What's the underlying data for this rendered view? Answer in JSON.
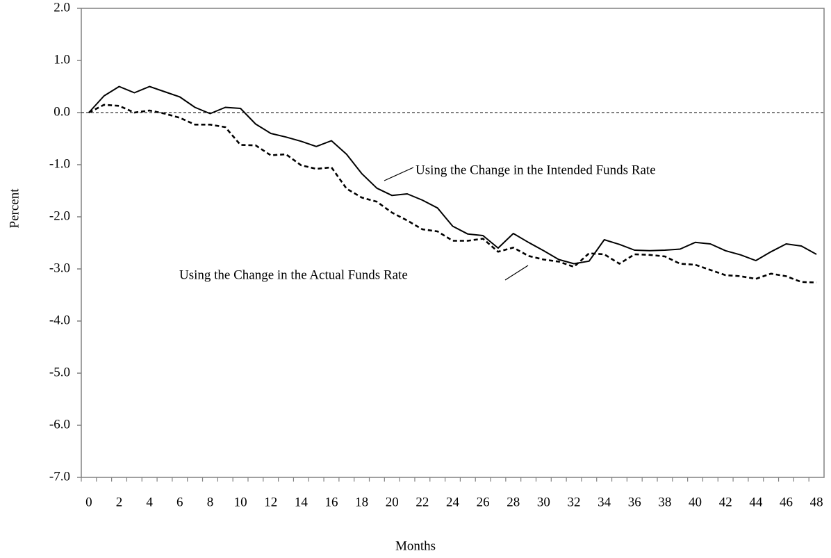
{
  "chart_data": {
    "type": "line",
    "x_label": "Months",
    "y_label": "Percent",
    "categories": [
      "0",
      null,
      "2",
      null,
      "4",
      null,
      "6",
      null,
      "8",
      null,
      "10",
      null,
      "12",
      null,
      "14",
      null,
      "16",
      null,
      "18",
      null,
      "20",
      null,
      "22",
      null,
      "24",
      null,
      "26",
      null,
      "28",
      null,
      "30",
      null,
      "32",
      null,
      "34",
      null,
      "36",
      null,
      "38",
      null,
      "40",
      null,
      "42",
      null,
      "44",
      null,
      "46",
      null,
      "48"
    ],
    "series": [
      {
        "name": "Using the Change in the Intended Funds Rate",
        "color": "#000000",
        "line_style": "solid",
        "values": [
          0,
          0.32,
          0.5,
          0.38,
          0.5,
          0.4,
          0.3,
          0.1,
          -0.02,
          0.1,
          0.08,
          -0.22,
          -0.4,
          -0.47,
          -0.55,
          -0.65,
          -0.54,
          -0.8,
          -1.17,
          -1.45,
          -1.59,
          -1.56,
          -1.68,
          -1.83,
          -2.18,
          -2.33,
          -2.36,
          -2.6,
          -2.32,
          -2.49,
          -2.65,
          -2.82,
          -2.9,
          -2.85,
          -2.44,
          -2.53,
          -2.64,
          -2.65,
          -2.64,
          -2.62,
          -2.49,
          -2.52,
          -2.65,
          -2.73,
          -2.84,
          -2.67,
          -2.52,
          -2.56,
          -2.72
        ]
      },
      {
        "name": "Using the Change in the Actual Funds Rate",
        "color": "#000000",
        "line_style": "dashed",
        "values": [
          0,
          0.15,
          0.13,
          0,
          0.04,
          -0.02,
          -0.1,
          -0.23,
          -0.23,
          -0.28,
          -0.62,
          -0.63,
          -0.82,
          -0.8,
          -1.01,
          -1.08,
          -1.05,
          -1.46,
          -1.63,
          -1.71,
          -1.92,
          -2.07,
          -2.24,
          -2.28,
          -2.46,
          -2.46,
          -2.42,
          -2.67,
          -2.59,
          -2.75,
          -2.82,
          -2.86,
          -2.96,
          -2.7,
          -2.72,
          -2.9,
          -2.72,
          -2.73,
          -2.76,
          -2.9,
          -2.92,
          -3.02,
          -3.12,
          -3.14,
          -3.19,
          -3.09,
          -3.14,
          -3.25,
          -3.26
        ]
      }
    ],
    "ylim": [
      -7,
      2
    ],
    "yticks": [
      {
        "value": -7,
        "label": "-7.0"
      },
      {
        "value": -6,
        "label": "-6.0"
      },
      {
        "value": -5,
        "label": "-5.0"
      },
      {
        "value": -4,
        "label": "-4.0"
      },
      {
        "value": -3,
        "label": "-3.0"
      },
      {
        "value": -2,
        "label": "-2.0"
      },
      {
        "value": -1,
        "label": "-1.0"
      },
      {
        "value": 0,
        "label": "0.0"
      },
      {
        "value": 1,
        "label": "1.0"
      },
      {
        "value": 2,
        "label": "2.0"
      }
    ],
    "reference_line": 0,
    "grid": false
  }
}
